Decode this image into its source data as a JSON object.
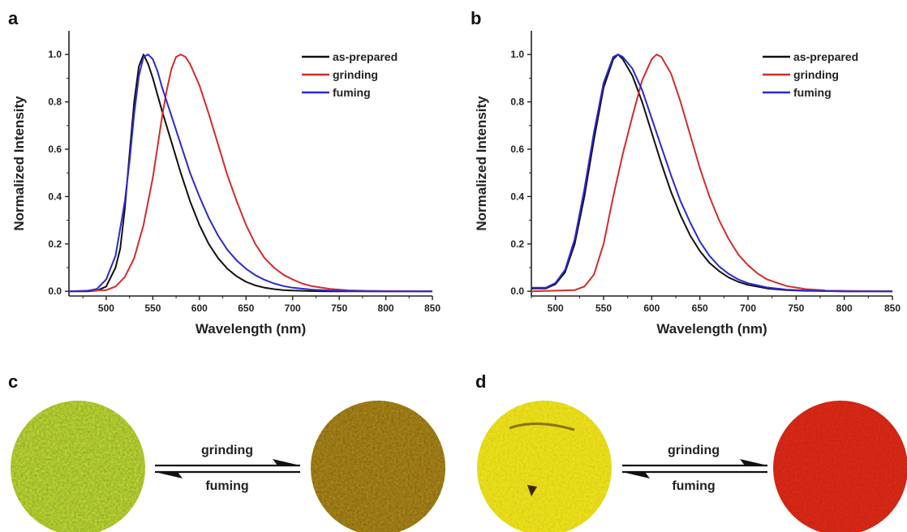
{
  "panels": {
    "a": "a",
    "b": "b",
    "c": "c",
    "d": "d"
  },
  "chart_data": [
    {
      "type": "line",
      "panel": "a",
      "xlabel": "Wavelength (nm)",
      "ylabel": "Normalized Intensity",
      "xlim": [
        460,
        850
      ],
      "ylim": [
        -0.02,
        1.1
      ],
      "xticks": [
        500,
        550,
        600,
        650,
        700,
        750,
        800,
        850
      ],
      "yticks": [
        0.0,
        0.2,
        0.4,
        0.6,
        0.8,
        1.0
      ],
      "legend_position": "top-right",
      "series": [
        {
          "name": "as-prepared",
          "color": "#111111",
          "x": [
            460,
            480,
            490,
            500,
            510,
            515,
            520,
            525,
            530,
            535,
            540,
            545,
            550,
            555,
            560,
            570,
            580,
            590,
            600,
            610,
            620,
            630,
            640,
            650,
            660,
            670,
            680,
            690,
            700,
            720,
            740,
            760,
            800,
            850
          ],
          "y": [
            0.0,
            0.0,
            0.003,
            0.02,
            0.1,
            0.18,
            0.35,
            0.58,
            0.8,
            0.95,
            1.0,
            0.96,
            0.9,
            0.83,
            0.76,
            0.63,
            0.5,
            0.38,
            0.28,
            0.2,
            0.14,
            0.095,
            0.063,
            0.04,
            0.025,
            0.015,
            0.009,
            0.005,
            0.003,
            0.001,
            0.0,
            0.0,
            0.0,
            0.0
          ]
        },
        {
          "name": "grinding",
          "color": "#d42b2b",
          "x": [
            460,
            500,
            510,
            520,
            530,
            540,
            550,
            560,
            565,
            570,
            575,
            580,
            585,
            590,
            600,
            610,
            620,
            630,
            640,
            650,
            660,
            670,
            680,
            690,
            700,
            710,
            720,
            740,
            760,
            780,
            800,
            850
          ],
          "y": [
            0.0,
            0.005,
            0.02,
            0.06,
            0.14,
            0.28,
            0.48,
            0.74,
            0.85,
            0.94,
            0.99,
            1.0,
            0.99,
            0.96,
            0.87,
            0.75,
            0.62,
            0.49,
            0.38,
            0.28,
            0.2,
            0.14,
            0.1,
            0.07,
            0.05,
            0.033,
            0.022,
            0.01,
            0.004,
            0.002,
            0.001,
            0.0
          ]
        },
        {
          "name": "fuming",
          "color": "#2a2ad4",
          "x": [
            460,
            480,
            490,
            500,
            510,
            520,
            525,
            530,
            535,
            540,
            545,
            550,
            555,
            560,
            570,
            580,
            590,
            600,
            610,
            620,
            630,
            640,
            650,
            660,
            670,
            680,
            690,
            700,
            720,
            740,
            760,
            800,
            850
          ],
          "y": [
            0.0,
            0.002,
            0.01,
            0.05,
            0.15,
            0.38,
            0.55,
            0.75,
            0.91,
            0.99,
            1.0,
            0.98,
            0.93,
            0.86,
            0.74,
            0.62,
            0.5,
            0.4,
            0.31,
            0.235,
            0.175,
            0.13,
            0.095,
            0.068,
            0.048,
            0.033,
            0.022,
            0.015,
            0.007,
            0.003,
            0.001,
            0.0,
            0.0
          ]
        }
      ]
    },
    {
      "type": "line",
      "panel": "b",
      "xlabel": "Wavelength (nm)",
      "ylabel": "Normalized Intensity",
      "xlim": [
        475,
        850
      ],
      "ylim": [
        -0.02,
        1.1
      ],
      "xticks": [
        500,
        550,
        600,
        650,
        700,
        750,
        800,
        850
      ],
      "yticks": [
        0.0,
        0.2,
        0.4,
        0.6,
        0.8,
        1.0
      ],
      "legend_position": "top-right",
      "series": [
        {
          "name": "as-prepared",
          "color": "#111111",
          "x": [
            475,
            490,
            500,
            510,
            520,
            530,
            540,
            550,
            560,
            565,
            570,
            580,
            590,
            600,
            610,
            620,
            630,
            640,
            650,
            660,
            670,
            680,
            690,
            700,
            720,
            740,
            760,
            780,
            800,
            850
          ],
          "y": [
            0.012,
            0.012,
            0.03,
            0.08,
            0.2,
            0.4,
            0.64,
            0.86,
            0.98,
            1.0,
            0.98,
            0.91,
            0.8,
            0.67,
            0.54,
            0.42,
            0.32,
            0.235,
            0.17,
            0.12,
            0.085,
            0.058,
            0.04,
            0.027,
            0.012,
            0.005,
            0.002,
            0.001,
            0.0,
            0.0
          ]
        },
        {
          "name": "grinding",
          "color": "#d42b2b",
          "x": [
            475,
            520,
            530,
            540,
            550,
            560,
            570,
            580,
            590,
            600,
            605,
            610,
            620,
            630,
            640,
            650,
            660,
            670,
            680,
            690,
            700,
            710,
            720,
            740,
            760,
            780,
            800,
            820,
            850
          ],
          "y": [
            0.0,
            0.005,
            0.02,
            0.07,
            0.2,
            0.4,
            0.58,
            0.74,
            0.89,
            0.98,
            1.0,
            0.99,
            0.92,
            0.8,
            0.66,
            0.52,
            0.4,
            0.3,
            0.22,
            0.155,
            0.11,
            0.075,
            0.05,
            0.022,
            0.009,
            0.004,
            0.002,
            0.001,
            0.0
          ]
        },
        {
          "name": "fuming",
          "color": "#2a2ad4",
          "x": [
            475,
            490,
            500,
            510,
            520,
            530,
            540,
            550,
            560,
            565,
            570,
            580,
            590,
            600,
            610,
            620,
            630,
            640,
            650,
            660,
            670,
            680,
            690,
            700,
            720,
            740,
            760,
            780,
            800,
            850
          ],
          "y": [
            0.015,
            0.015,
            0.035,
            0.09,
            0.22,
            0.43,
            0.67,
            0.88,
            0.99,
            1.0,
            0.99,
            0.94,
            0.85,
            0.73,
            0.61,
            0.49,
            0.38,
            0.29,
            0.21,
            0.15,
            0.105,
            0.073,
            0.05,
            0.034,
            0.016,
            0.007,
            0.003,
            0.001,
            0.0,
            0.0
          ]
        }
      ]
    }
  ],
  "photos": {
    "c": {
      "grinding": "grinding",
      "fuming": "fuming",
      "before_color": "#c8e637",
      "after_color": "#b8901a"
    },
    "d": {
      "grinding": "grinding",
      "fuming": "fuming",
      "before_color": "#f7ea1c",
      "after_color": "#e52a17"
    }
  }
}
